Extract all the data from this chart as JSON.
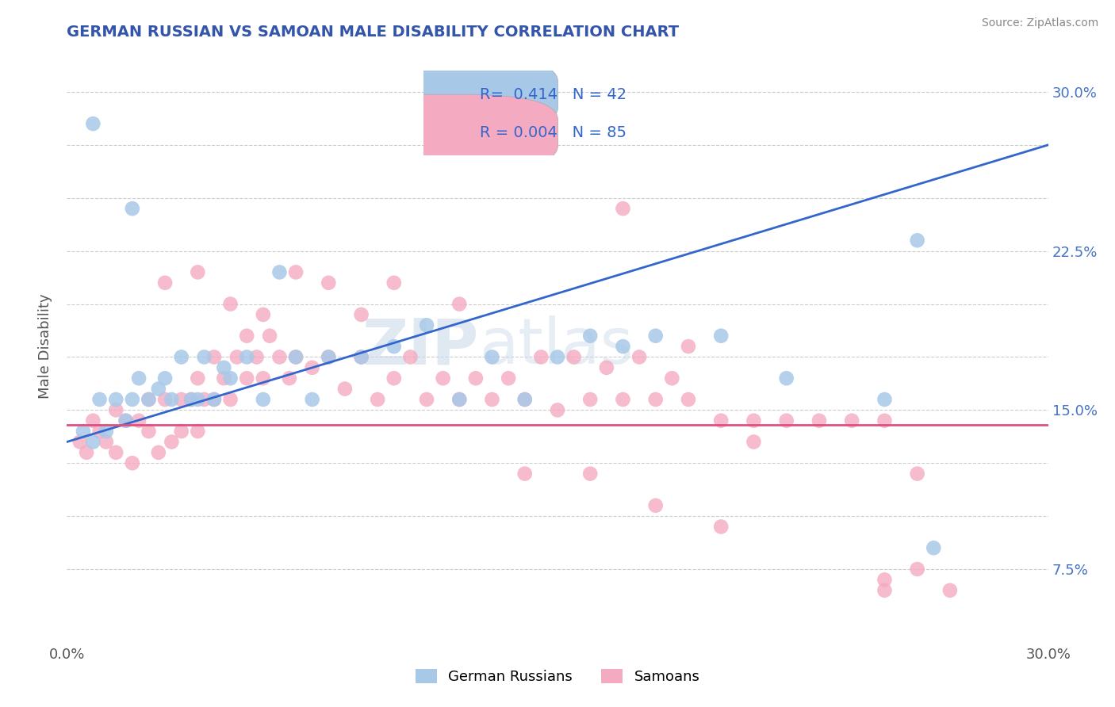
{
  "title": "GERMAN RUSSIAN VS SAMOAN MALE DISABILITY CORRELATION CHART",
  "source": "Source: ZipAtlas.com",
  "ylabel": "Male Disability",
  "xlim": [
    0.0,
    0.3
  ],
  "ylim": [
    0.04,
    0.32
  ],
  "blue_R": 0.414,
  "blue_N": 42,
  "pink_R": 0.004,
  "pink_N": 85,
  "blue_color": "#a8c8e8",
  "pink_color": "#f4aac0",
  "blue_line_color": "#3366cc",
  "pink_line_color": "#e05080",
  "watermark_zip": "ZIP",
  "watermark_atlas": "atlas",
  "blue_scatter_x": [
    0.005,
    0.008,
    0.01,
    0.012,
    0.015,
    0.018,
    0.02,
    0.022,
    0.025,
    0.028,
    0.03,
    0.032,
    0.035,
    0.038,
    0.04,
    0.042,
    0.045,
    0.048,
    0.05,
    0.055,
    0.06,
    0.065,
    0.07,
    0.075,
    0.08,
    0.09,
    0.1,
    0.11,
    0.12,
    0.13,
    0.14,
    0.15,
    0.16,
    0.17,
    0.18,
    0.2,
    0.22,
    0.25,
    0.26,
    0.265,
    0.008,
    0.02
  ],
  "blue_scatter_y": [
    0.14,
    0.135,
    0.155,
    0.14,
    0.155,
    0.145,
    0.155,
    0.165,
    0.155,
    0.16,
    0.165,
    0.155,
    0.175,
    0.155,
    0.155,
    0.175,
    0.155,
    0.17,
    0.165,
    0.175,
    0.155,
    0.215,
    0.175,
    0.155,
    0.175,
    0.175,
    0.18,
    0.19,
    0.155,
    0.175,
    0.155,
    0.175,
    0.185,
    0.18,
    0.185,
    0.185,
    0.165,
    0.155,
    0.23,
    0.085,
    0.285,
    0.245
  ],
  "pink_scatter_x": [
    0.004,
    0.006,
    0.008,
    0.01,
    0.012,
    0.015,
    0.015,
    0.018,
    0.02,
    0.022,
    0.025,
    0.025,
    0.028,
    0.03,
    0.032,
    0.035,
    0.035,
    0.038,
    0.04,
    0.04,
    0.042,
    0.045,
    0.045,
    0.048,
    0.05,
    0.052,
    0.055,
    0.055,
    0.058,
    0.06,
    0.062,
    0.065,
    0.068,
    0.07,
    0.075,
    0.08,
    0.085,
    0.09,
    0.095,
    0.1,
    0.105,
    0.11,
    0.115,
    0.12,
    0.125,
    0.13,
    0.135,
    0.14,
    0.145,
    0.15,
    0.155,
    0.16,
    0.165,
    0.17,
    0.175,
    0.18,
    0.185,
    0.19,
    0.2,
    0.21,
    0.22,
    0.23,
    0.24,
    0.25,
    0.26,
    0.03,
    0.04,
    0.05,
    0.06,
    0.07,
    0.08,
    0.09,
    0.1,
    0.12,
    0.14,
    0.16,
    0.18,
    0.2,
    0.17,
    0.19,
    0.21,
    0.25,
    0.27,
    0.25,
    0.26
  ],
  "pink_scatter_y": [
    0.135,
    0.13,
    0.145,
    0.14,
    0.135,
    0.13,
    0.15,
    0.145,
    0.125,
    0.145,
    0.14,
    0.155,
    0.13,
    0.155,
    0.135,
    0.155,
    0.14,
    0.155,
    0.14,
    0.165,
    0.155,
    0.155,
    0.175,
    0.165,
    0.155,
    0.175,
    0.165,
    0.185,
    0.175,
    0.165,
    0.185,
    0.175,
    0.165,
    0.175,
    0.17,
    0.175,
    0.16,
    0.175,
    0.155,
    0.165,
    0.175,
    0.155,
    0.165,
    0.155,
    0.165,
    0.155,
    0.165,
    0.155,
    0.175,
    0.15,
    0.175,
    0.155,
    0.17,
    0.155,
    0.175,
    0.155,
    0.165,
    0.155,
    0.145,
    0.145,
    0.145,
    0.145,
    0.145,
    0.145,
    0.12,
    0.21,
    0.215,
    0.2,
    0.195,
    0.215,
    0.21,
    0.195,
    0.21,
    0.2,
    0.12,
    0.12,
    0.105,
    0.095,
    0.245,
    0.18,
    0.135,
    0.065,
    0.065,
    0.07,
    0.075
  ]
}
